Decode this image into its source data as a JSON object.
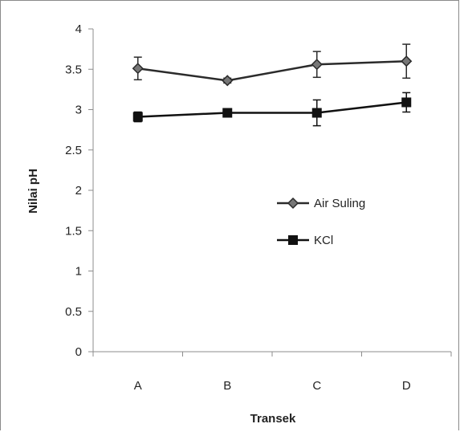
{
  "chart_data": {
    "type": "line",
    "xlabel": "Transek",
    "ylabel": "Nilai pH",
    "categories": [
      "A",
      "B",
      "C",
      "D"
    ],
    "ylim": [
      0,
      4
    ],
    "yticks": [
      0,
      0.5,
      1,
      1.5,
      2,
      2.5,
      3,
      3.5,
      4
    ],
    "ytick_labels": [
      "0",
      "0.5",
      "1",
      "1.5",
      "2",
      "2.5",
      "3",
      "3.5",
      "4"
    ],
    "grid": false,
    "legend_position": "center-right",
    "series": [
      {
        "name": "Air Suling",
        "marker": "diamond",
        "color": "#2b2b2b",
        "values": [
          3.51,
          3.36,
          3.56,
          3.6
        ],
        "errors": [
          0.14,
          0.03,
          0.16,
          0.21
        ]
      },
      {
        "name": "KCl",
        "marker": "square",
        "color": "#111111",
        "values": [
          2.91,
          2.96,
          2.96,
          3.09
        ],
        "errors": [
          0.06,
          0.02,
          0.16,
          0.12
        ]
      }
    ]
  }
}
